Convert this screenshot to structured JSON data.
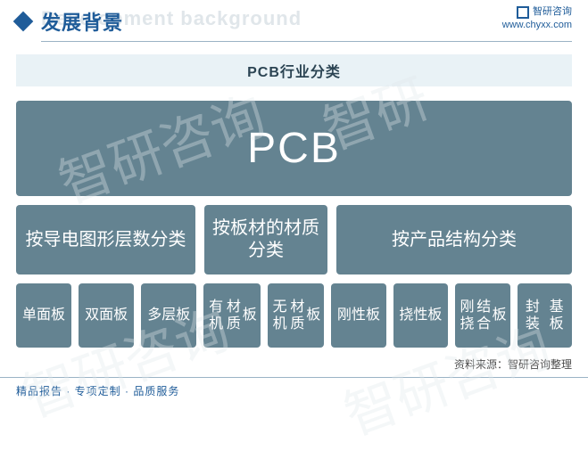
{
  "header": {
    "title_cn": "发展背景",
    "title_en_ghost": "Development background",
    "brand_name": "智研咨询",
    "brand_url": "www.chyxx.com"
  },
  "subtitle": "PCB行业分类",
  "diagram": {
    "type": "tree",
    "box_color": "#648391",
    "text_color": "#ffffff",
    "root": {
      "label": "PCB",
      "fontsize": 48
    },
    "categories": [
      {
        "label": "按导电图形层数分类",
        "leaves": [
          "单面板",
          "双面板",
          "多层板"
        ],
        "width_fr": 3
      },
      {
        "label": "按板材的材质分类",
        "leaves": [
          "有机材质板",
          "无机材质板"
        ],
        "width_fr": 2
      },
      {
        "label": "按产品结构分类",
        "leaves": [
          "刚性板",
          "挠性板",
          "刚挠结合板",
          "封装基板"
        ],
        "width_fr": 4
      }
    ],
    "cat_fontsize": 20,
    "leaf_fontsize": 16
  },
  "source": "资料来源：智研咨询整理",
  "footer": "精品报告 · 专项定制 · 品质服务",
  "colors": {
    "accent": "#1f5c99",
    "subtitle_bg": "#e9f2f6",
    "rule": "#9bb3c5",
    "ghost_text": "#e0e6ea"
  }
}
